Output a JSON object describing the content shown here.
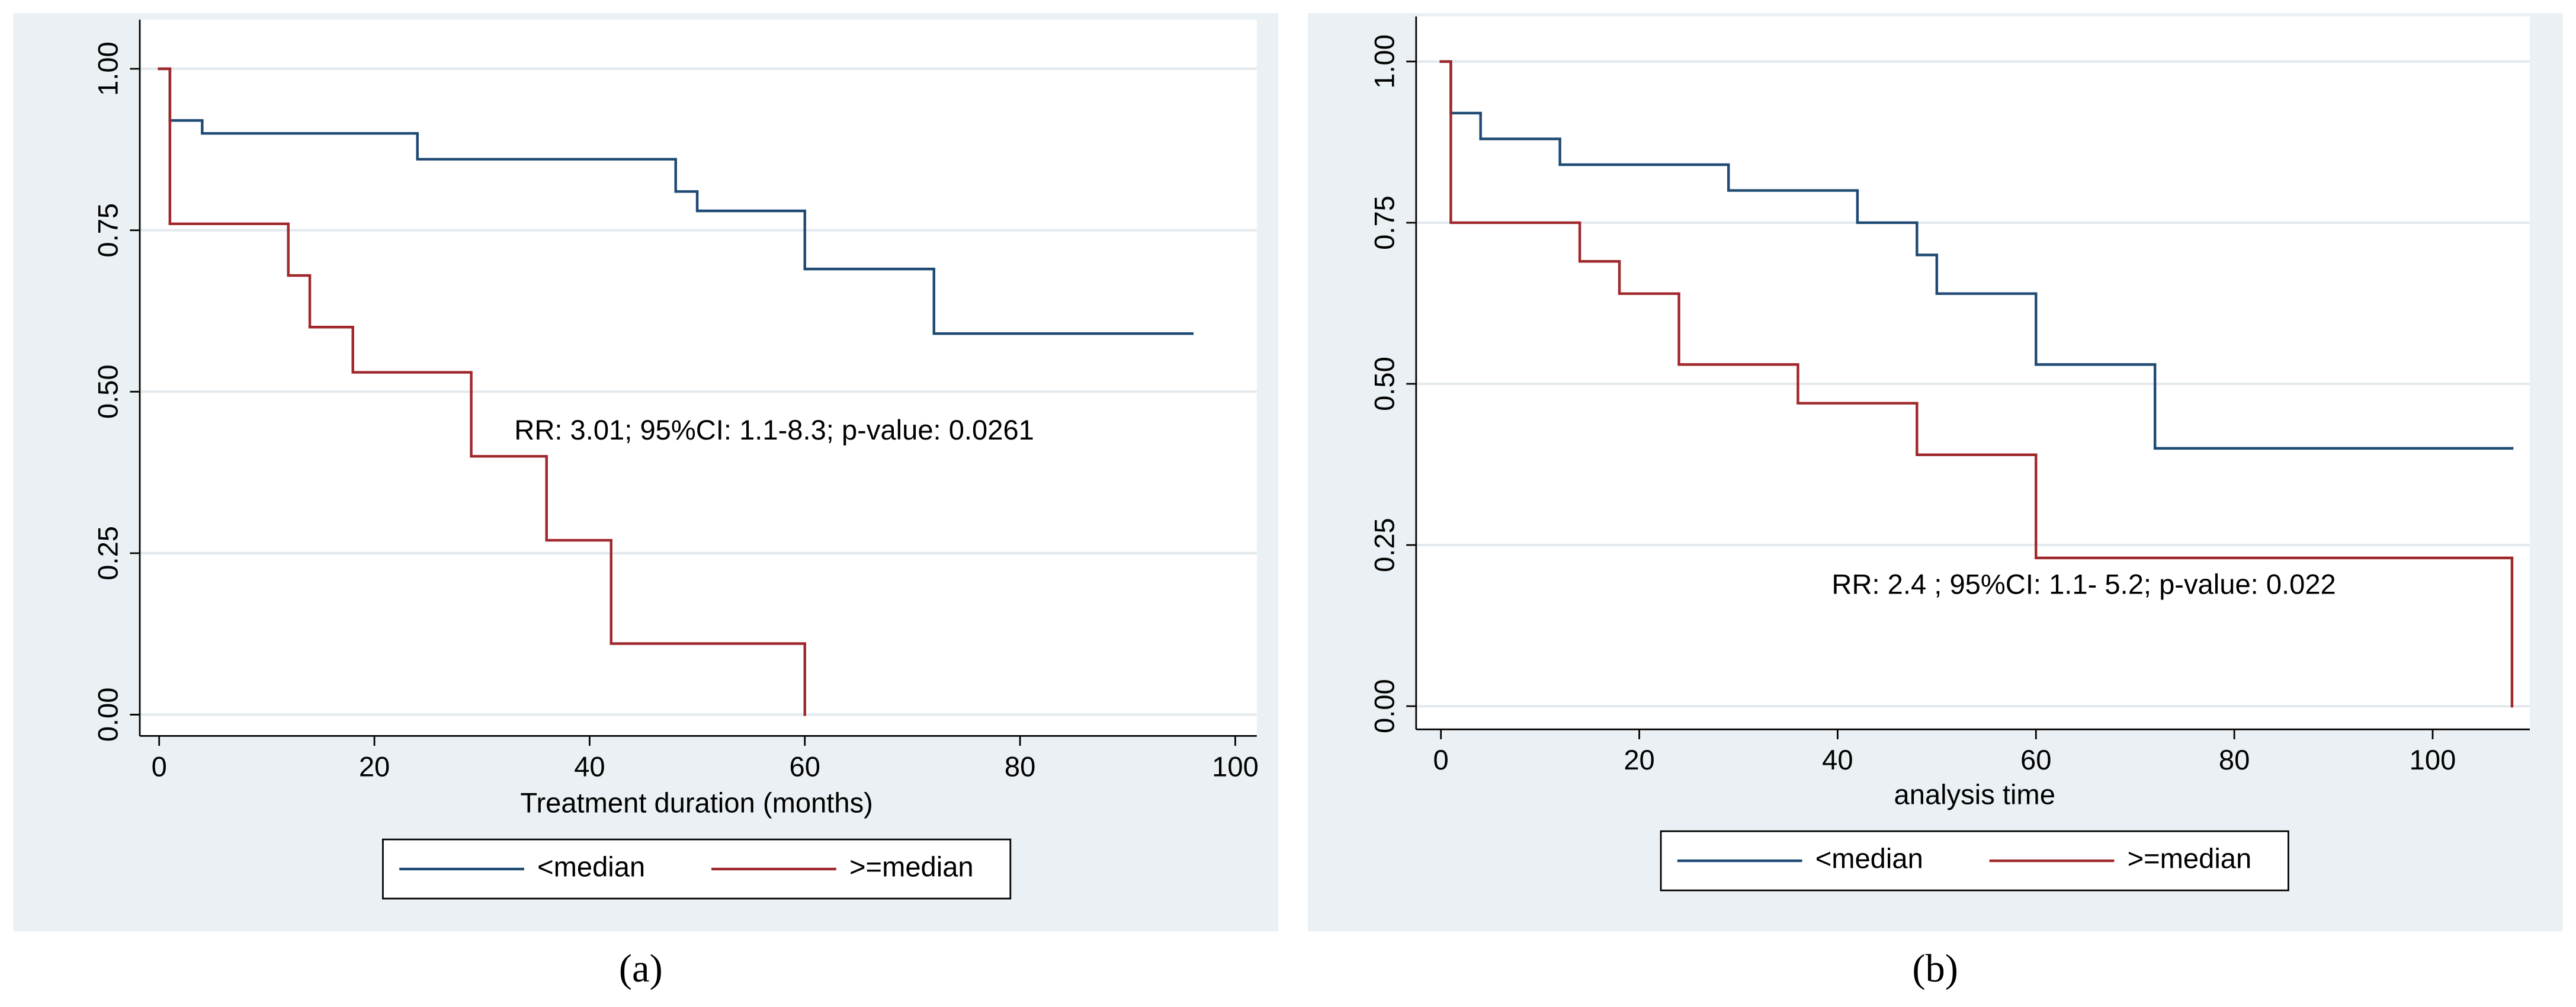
{
  "chart_data": [
    {
      "type": "step",
      "xlabel": "Treatment duration (months)",
      "annotation": "RR: 3.01; 95%CI: 1.1-8.3; p-value: 0.0261",
      "caption": "(a)",
      "xlim": [
        -1.8,
        102
      ],
      "ylim": [
        -0.033,
        1.076
      ],
      "xticks": [
        0,
        20,
        40,
        60,
        80,
        100
      ],
      "yticks": [
        {
          "value": 0,
          "label": "0.00"
        },
        {
          "value": 0.25,
          "label": "0.25"
        },
        {
          "value": 0.5,
          "label": "0.50"
        },
        {
          "value": 0.75,
          "label": "0.75"
        },
        {
          "value": 1,
          "label": "1.00"
        }
      ],
      "grid": true,
      "series": [
        {
          "name": "<median",
          "color": "#1f4a73",
          "x": [
            0,
            1,
            4,
            24,
            48,
            50,
            60,
            72,
            96
          ],
          "values": [
            1,
            0.92,
            0.9,
            0.86,
            0.81,
            0.78,
            0.69,
            0.59,
            0.59
          ]
        },
        {
          "name": ">=median",
          "color": "#a0282c",
          "x": [
            0,
            1,
            12,
            14,
            18,
            29,
            36,
            42,
            60
          ],
          "values": [
            1,
            0.76,
            0.68,
            0.6,
            0.53,
            0.4,
            0.27,
            0.11,
            0
          ]
        }
      ]
    },
    {
      "type": "step",
      "xlabel": "analysis time",
      "annotation": "RR: 2.4 ; 95%CI: 1.1- 5.2; p-value: 0.022",
      "caption": "(b)",
      "xlim": [
        -2.5,
        109.8
      ],
      "ylim": [
        -0.036,
        1.07
      ],
      "xticks": [
        0,
        20,
        40,
        60,
        80,
        100
      ],
      "yticks": [
        {
          "value": 0,
          "label": "0.00"
        },
        {
          "value": 0.25,
          "label": "0.25"
        },
        {
          "value": 0.5,
          "label": "0.50"
        },
        {
          "value": 0.75,
          "label": "0.75"
        },
        {
          "value": 1,
          "label": "1.00"
        }
      ],
      "grid": true,
      "series": [
        {
          "name": "<median",
          "color": "#1f4a73",
          "x": [
            0,
            1,
            4,
            12,
            29,
            42,
            48,
            50,
            60,
            72,
            108
          ],
          "values": [
            1,
            0.92,
            0.88,
            0.84,
            0.8,
            0.75,
            0.7,
            0.64,
            0.53,
            0.4,
            0.4
          ]
        },
        {
          "name": ">=median",
          "color": "#a0282c",
          "x": [
            0,
            1,
            14,
            18,
            24,
            36,
            48,
            60,
            108
          ],
          "values": [
            1,
            0.75,
            0.69,
            0.64,
            0.53,
            0.47,
            0.39,
            0.23,
            0
          ]
        }
      ]
    }
  ]
}
